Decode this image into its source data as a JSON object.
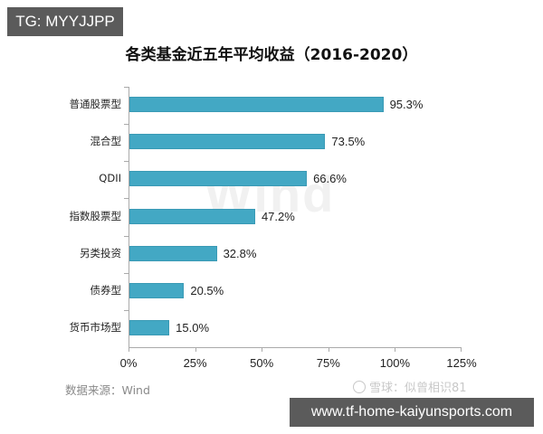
{
  "overlay": {
    "tg_badge": "TG: MYYJJPP",
    "url_badge": "www.tf-home-kaiyunsports.com"
  },
  "chart_data": {
    "type": "bar",
    "orientation": "horizontal",
    "title": "各类基金近五年平均收益（2016-2020）",
    "categories": [
      "普通股票型",
      "混合型",
      "QDII",
      "指数股票型",
      "另类投资",
      "债券型",
      "货币市场型"
    ],
    "values": [
      95.3,
      73.5,
      66.6,
      47.2,
      32.8,
      20.5,
      15.0
    ],
    "value_labels": [
      "95.3%",
      "73.5%",
      "66.6%",
      "47.2%",
      "32.8%",
      "20.5%",
      "15.0%"
    ],
    "xlabel": "",
    "ylabel": "",
    "xlim": [
      0,
      125
    ],
    "x_ticks": [
      "0%",
      "25%",
      "50%",
      "75%",
      "100%",
      "125%"
    ],
    "grid": false,
    "legend": null,
    "bar_color": "#43a8c4",
    "watermark": "Wind",
    "source": "数据来源：Wind",
    "attribution": "雪球：似曾相识81"
  }
}
